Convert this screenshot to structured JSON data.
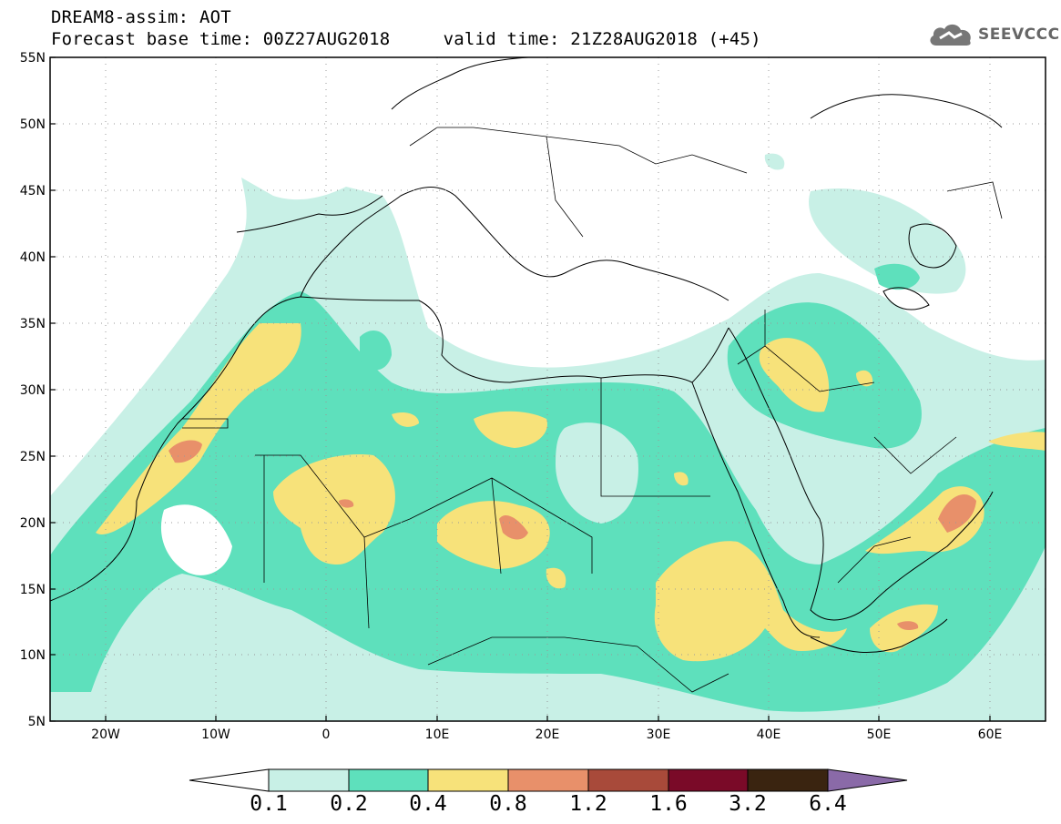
{
  "header": {
    "line1": "DREAM8-assim: AOT",
    "line2": "Forecast base time: 00Z27AUG2018     valid time: 21Z28AUG2018 (+45)",
    "logo_text": "SEEVCCC",
    "logo_icon": "cloud-logo-icon"
  },
  "map": {
    "lon_range": [
      -25,
      65
    ],
    "lat_range": [
      5,
      55
    ],
    "lat_labels": [
      "55N",
      "50N",
      "45N",
      "40N",
      "35N",
      "30N",
      "25N",
      "20N",
      "15N",
      "10N",
      "5N"
    ],
    "lon_labels": [
      "20W",
      "10W",
      "0",
      "10E",
      "20E",
      "30E",
      "40E",
      "50E",
      "60E"
    ],
    "grid": "dotted"
  },
  "colorbar": {
    "labels": [
      "0.1",
      "0.2",
      "0.4",
      "0.8",
      "1.2",
      "1.6",
      "3.2",
      "6.4"
    ],
    "colors": [
      "#c8f0e6",
      "#5ee0bc",
      "#f7e27a",
      "#e8906a",
      "#a84a3a",
      "#7a0a28",
      "#3a2410",
      "#8a6aa8"
    ],
    "under_color": "#ffffff"
  }
}
